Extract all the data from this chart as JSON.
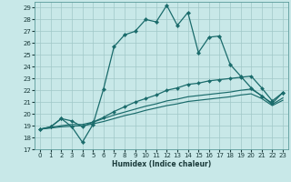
{
  "xlabel": "Humidex (Indice chaleur)",
  "background_color": "#c8e8e8",
  "grid_color": "#a0c8c8",
  "line_color": "#1a6b6b",
  "xlim": [
    -0.5,
    23.5
  ],
  "ylim": [
    17,
    29.5
  ],
  "xticks": [
    0,
    1,
    2,
    3,
    4,
    5,
    6,
    7,
    8,
    9,
    10,
    11,
    12,
    13,
    14,
    15,
    16,
    17,
    18,
    19,
    20,
    21,
    22,
    23
  ],
  "yticks": [
    17,
    18,
    19,
    20,
    21,
    22,
    23,
    24,
    25,
    26,
    27,
    28,
    29
  ],
  "series1_x": [
    0,
    1,
    2,
    3,
    4,
    5,
    6,
    7,
    8,
    9,
    10,
    11,
    12,
    13,
    14,
    15,
    16,
    17,
    18,
    19,
    20,
    21,
    22,
    23
  ],
  "series1_y": [
    18.7,
    18.9,
    19.6,
    18.9,
    17.6,
    19.1,
    22.1,
    25.7,
    26.7,
    27.0,
    28.0,
    27.8,
    29.2,
    27.5,
    28.6,
    25.2,
    26.5,
    26.6,
    24.2,
    23.2,
    22.2,
    21.5,
    20.9,
    21.8
  ],
  "series2_x": [
    0,
    1,
    2,
    3,
    4,
    5,
    6,
    7,
    8,
    9,
    10,
    11,
    12,
    13,
    14,
    15,
    16,
    17,
    18,
    19,
    20,
    21,
    22,
    23
  ],
  "series2_y": [
    18.7,
    18.9,
    19.6,
    19.4,
    18.9,
    19.3,
    19.7,
    20.2,
    20.6,
    21.0,
    21.3,
    21.6,
    22.0,
    22.2,
    22.5,
    22.6,
    22.8,
    22.9,
    23.0,
    23.1,
    23.2,
    22.2,
    21.1,
    21.8
  ],
  "series3_x": [
    0,
    1,
    2,
    3,
    4,
    5,
    6,
    7,
    8,
    9,
    10,
    11,
    12,
    13,
    14,
    15,
    16,
    17,
    18,
    19,
    20,
    21,
    22,
    23
  ],
  "series3_y": [
    18.7,
    18.85,
    19.0,
    19.1,
    19.1,
    19.3,
    19.6,
    19.9,
    20.15,
    20.4,
    20.65,
    20.85,
    21.1,
    21.25,
    21.45,
    21.55,
    21.65,
    21.75,
    21.85,
    22.0,
    22.1,
    21.55,
    20.8,
    21.35
  ],
  "series4_x": [
    0,
    1,
    2,
    3,
    4,
    5,
    6,
    7,
    8,
    9,
    10,
    11,
    12,
    13,
    14,
    15,
    16,
    17,
    18,
    19,
    20,
    21,
    22,
    23
  ],
  "series4_y": [
    18.7,
    18.8,
    18.9,
    18.95,
    19.0,
    19.15,
    19.35,
    19.6,
    19.85,
    20.05,
    20.3,
    20.5,
    20.7,
    20.85,
    21.05,
    21.15,
    21.25,
    21.35,
    21.45,
    21.6,
    21.7,
    21.3,
    20.7,
    21.15
  ]
}
